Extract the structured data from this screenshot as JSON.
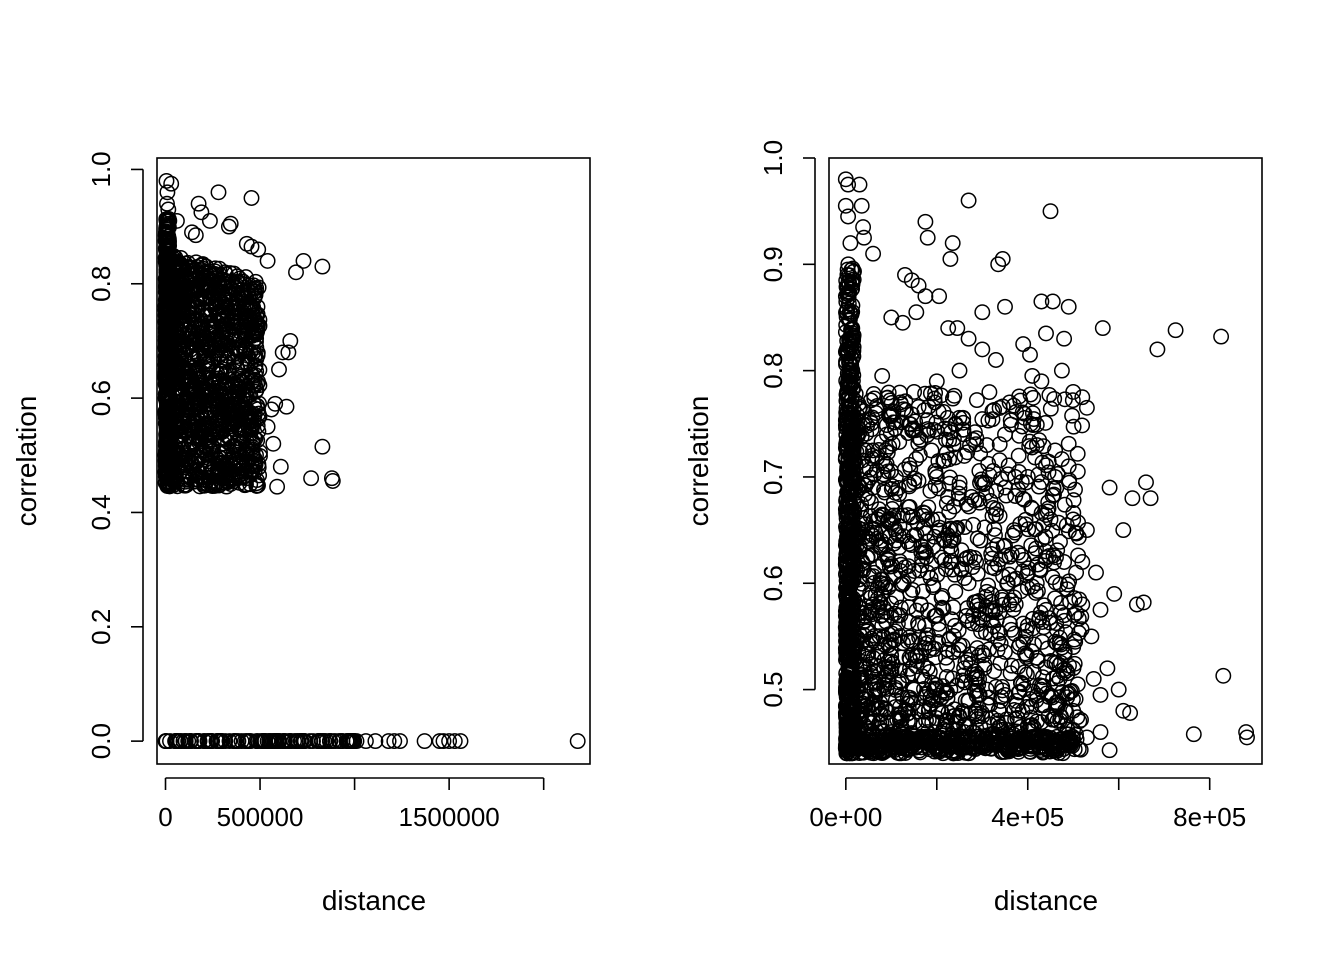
{
  "chart_data": [
    {
      "type": "scatter",
      "title": "",
      "xlabel": "distance",
      "ylabel": "correlation",
      "xlim": [
        -45000,
        2245000
      ],
      "ylim": [
        -0.04,
        1.02
      ],
      "xticks": [
        0,
        500000,
        1000000,
        1500000,
        2000000
      ],
      "xtick_labels": [
        "0",
        "500000",
        "",
        "1500000",
        ""
      ],
      "yticks": [
        0.0,
        0.2,
        0.4,
        0.6,
        0.8,
        1.0
      ],
      "ytick_labels": [
        "0.0",
        "0.2",
        "0.4",
        "0.6",
        "0.8",
        "1.0"
      ],
      "grid": false,
      "legend": "none",
      "marker": "open-circle",
      "points": [
        [
          5000,
          0.98
        ],
        [
          30000,
          0.975
        ],
        [
          10000,
          0.96
        ],
        [
          8000,
          0.94
        ],
        [
          15000,
          0.93
        ],
        [
          20000,
          0.91
        ],
        [
          5000,
          0.9
        ],
        [
          280000,
          0.96
        ],
        [
          455000,
          0.95
        ],
        [
          175000,
          0.94
        ],
        [
          190000,
          0.925
        ],
        [
          235000,
          0.91
        ],
        [
          345000,
          0.905
        ],
        [
          335000,
          0.9
        ],
        [
          60000,
          0.91
        ],
        [
          140000,
          0.89
        ],
        [
          160000,
          0.885
        ],
        [
          430000,
          0.87
        ],
        [
          455000,
          0.865
        ],
        [
          490000,
          0.86
        ],
        [
          540000,
          0.84
        ],
        [
          730000,
          0.84
        ],
        [
          830000,
          0.83
        ],
        [
          690000,
          0.82
        ],
        [
          650000,
          0.68
        ],
        [
          620000,
          0.68
        ],
        [
          660000,
          0.7
        ],
        [
          600000,
          0.65
        ],
        [
          580000,
          0.59
        ],
        [
          640000,
          0.585
        ],
        [
          560000,
          0.58
        ],
        [
          540000,
          0.55
        ],
        [
          570000,
          0.52
        ],
        [
          830000,
          0.515
        ],
        [
          610000,
          0.48
        ],
        [
          770000,
          0.46
        ],
        [
          880000,
          0.46
        ],
        [
          885000,
          0.455
        ],
        [
          590000,
          0.445
        ],
        [
          0,
          0.0
        ],
        [
          60000,
          0.0
        ],
        [
          120000,
          0.0
        ],
        [
          180000,
          0.0
        ],
        [
          240000,
          0.0
        ],
        [
          300000,
          0.0
        ],
        [
          360000,
          0.0
        ],
        [
          420000,
          0.0
        ],
        [
          480000,
          0.0
        ],
        [
          540000,
          0.0
        ],
        [
          600000,
          0.0
        ],
        [
          660000,
          0.0
        ],
        [
          720000,
          0.0
        ],
        [
          780000,
          0.0
        ],
        [
          840000,
          0.0
        ],
        [
          900000,
          0.0
        ],
        [
          960000,
          0.0
        ],
        [
          1010000,
          0.0
        ],
        [
          1060000,
          0.0
        ],
        [
          1110000,
          0.0
        ],
        [
          1180000,
          0.0
        ],
        [
          1210000,
          0.0
        ],
        [
          1240000,
          0.0
        ],
        [
          1370000,
          0.0
        ],
        [
          1450000,
          0.0
        ],
        [
          1470000,
          0.0
        ],
        [
          1500000,
          0.0
        ],
        [
          1530000,
          0.0
        ],
        [
          1560000,
          0.0
        ],
        [
          2180000,
          0.0
        ]
      ]
    },
    {
      "type": "scatter",
      "title": "",
      "xlabel": "distance",
      "ylabel": "correlation",
      "xlim": [
        -37000,
        915000
      ],
      "ylim": [
        0.43,
        1.0
      ],
      "xticks": [
        0,
        200000,
        400000,
        600000,
        800000
      ],
      "xtick_labels": [
        "0e+00",
        "",
        "4e+05",
        "",
        "8e+05"
      ],
      "yticks": [
        0.5,
        0.6,
        0.7,
        0.8,
        0.9,
        1.0
      ],
      "ytick_labels": [
        "0.5",
        "0.6",
        "0.7",
        "0.8",
        "0.9",
        "1.0"
      ],
      "grid": false,
      "legend": "none",
      "marker": "open-circle",
      "points": [
        [
          0,
          0.98
        ],
        [
          5000,
          0.975
        ],
        [
          30000,
          0.975
        ],
        [
          0,
          0.955
        ],
        [
          5000,
          0.945
        ],
        [
          35000,
          0.955
        ],
        [
          38000,
          0.935
        ],
        [
          40000,
          0.925
        ],
        [
          10000,
          0.92
        ],
        [
          60000,
          0.91
        ],
        [
          270000,
          0.96
        ],
        [
          450000,
          0.95
        ],
        [
          175000,
          0.94
        ],
        [
          180000,
          0.925
        ],
        [
          235000,
          0.92
        ],
        [
          230000,
          0.905
        ],
        [
          345000,
          0.905
        ],
        [
          335000,
          0.9
        ],
        [
          130000,
          0.89
        ],
        [
          145000,
          0.885
        ],
        [
          160000,
          0.88
        ],
        [
          175000,
          0.87
        ],
        [
          205000,
          0.87
        ],
        [
          430000,
          0.865
        ],
        [
          455000,
          0.865
        ],
        [
          490000,
          0.86
        ],
        [
          350000,
          0.86
        ],
        [
          155000,
          0.855
        ],
        [
          300000,
          0.855
        ],
        [
          100000,
          0.85
        ],
        [
          125000,
          0.845
        ],
        [
          225000,
          0.84
        ],
        [
          245000,
          0.84
        ],
        [
          565000,
          0.84
        ],
        [
          725000,
          0.838
        ],
        [
          825000,
          0.832
        ],
        [
          685000,
          0.82
        ],
        [
          440000,
          0.835
        ],
        [
          480000,
          0.83
        ],
        [
          270000,
          0.83
        ],
        [
          300000,
          0.82
        ],
        [
          390000,
          0.825
        ],
        [
          405000,
          0.815
        ],
        [
          250000,
          0.8
        ],
        [
          330000,
          0.81
        ],
        [
          520000,
          0.775
        ],
        [
          530000,
          0.765
        ],
        [
          500000,
          0.78
        ],
        [
          475000,
          0.8
        ],
        [
          430000,
          0.79
        ],
        [
          410000,
          0.795
        ],
        [
          360000,
          0.77
        ],
        [
          200000,
          0.79
        ],
        [
          150000,
          0.78
        ],
        [
          120000,
          0.77
        ],
        [
          80000,
          0.795
        ],
        [
          100000,
          0.76
        ],
        [
          90000,
          0.74
        ],
        [
          140000,
          0.75
        ],
        [
          180000,
          0.745
        ],
        [
          220000,
          0.735
        ],
        [
          260000,
          0.74
        ],
        [
          310000,
          0.73
        ],
        [
          350000,
          0.74
        ],
        [
          380000,
          0.72
        ],
        [
          420000,
          0.73
        ],
        [
          460000,
          0.725
        ],
        [
          490000,
          0.71
        ],
        [
          510000,
          0.705
        ],
        [
          460000,
          0.7
        ],
        [
          400000,
          0.7
        ],
        [
          350000,
          0.69
        ],
        [
          300000,
          0.695
        ],
        [
          250000,
          0.69
        ],
        [
          200000,
          0.7
        ],
        [
          150000,
          0.695
        ],
        [
          110000,
          0.7
        ],
        [
          60000,
          0.69
        ],
        [
          580000,
          0.69
        ],
        [
          660000,
          0.695
        ],
        [
          670000,
          0.68
        ],
        [
          630000,
          0.68
        ],
        [
          610000,
          0.65
        ],
        [
          530000,
          0.65
        ],
        [
          500000,
          0.66
        ],
        [
          450000,
          0.66
        ],
        [
          410000,
          0.67
        ],
        [
          370000,
          0.65
        ],
        [
          330000,
          0.665
        ],
        [
          280000,
          0.655
        ],
        [
          240000,
          0.65
        ],
        [
          190000,
          0.66
        ],
        [
          150000,
          0.645
        ],
        [
          100000,
          0.655
        ],
        [
          70000,
          0.66
        ],
        [
          520000,
          0.62
        ],
        [
          480000,
          0.62
        ],
        [
          440000,
          0.63
        ],
        [
          400000,
          0.61
        ],
        [
          360000,
          0.625
        ],
        [
          320000,
          0.615
        ],
        [
          270000,
          0.6
        ],
        [
          230000,
          0.62
        ],
        [
          180000,
          0.61
        ],
        [
          130000,
          0.615
        ],
        [
          80000,
          0.6
        ],
        [
          550000,
          0.61
        ],
        [
          590000,
          0.59
        ],
        [
          640000,
          0.58
        ],
        [
          655000,
          0.582
        ],
        [
          560000,
          0.575
        ],
        [
          520000,
          0.58
        ],
        [
          480000,
          0.57
        ],
        [
          440000,
          0.575
        ],
        [
          400000,
          0.56
        ],
        [
          360000,
          0.58
        ],
        [
          320000,
          0.565
        ],
        [
          280000,
          0.57
        ],
        [
          240000,
          0.56
        ],
        [
          200000,
          0.57
        ],
        [
          160000,
          0.56
        ],
        [
          120000,
          0.57
        ],
        [
          80000,
          0.56
        ],
        [
          60000,
          0.58
        ],
        [
          540000,
          0.55
        ],
        [
          500000,
          0.54
        ],
        [
          460000,
          0.545
        ],
        [
          420000,
          0.53
        ],
        [
          380000,
          0.54
        ],
        [
          340000,
          0.525
        ],
        [
          300000,
          0.535
        ],
        [
          260000,
          0.52
        ],
        [
          220000,
          0.53
        ],
        [
          180000,
          0.52
        ],
        [
          140000,
          0.53
        ],
        [
          100000,
          0.52
        ],
        [
          70000,
          0.535
        ],
        [
          575000,
          0.52
        ],
        [
          545000,
          0.51
        ],
        [
          510000,
          0.505
        ],
        [
          470000,
          0.51
        ],
        [
          430000,
          0.5
        ],
        [
          390000,
          0.505
        ],
        [
          350000,
          0.495
        ],
        [
          310000,
          0.5
        ],
        [
          270000,
          0.49
        ],
        [
          230000,
          0.5
        ],
        [
          190000,
          0.49
        ],
        [
          150000,
          0.5
        ],
        [
          110000,
          0.49
        ],
        [
          75000,
          0.5
        ],
        [
          560000,
          0.495
        ],
        [
          600000,
          0.5
        ],
        [
          610000,
          0.48
        ],
        [
          625000,
          0.478
        ],
        [
          830000,
          0.513
        ],
        [
          765000,
          0.458
        ],
        [
          880000,
          0.46
        ],
        [
          882000,
          0.455
        ],
        [
          500000,
          0.48
        ],
        [
          460000,
          0.475
        ],
        [
          420000,
          0.47
        ],
        [
          380000,
          0.48
        ],
        [
          340000,
          0.465
        ],
        [
          300000,
          0.475
        ],
        [
          260000,
          0.46
        ],
        [
          220000,
          0.47
        ],
        [
          180000,
          0.46
        ],
        [
          140000,
          0.47
        ],
        [
          100000,
          0.46
        ],
        [
          60000,
          0.47
        ],
        [
          560000,
          0.46
        ],
        [
          530000,
          0.455
        ],
        [
          580000,
          0.443
        ],
        [
          480000,
          0.45
        ],
        [
          440000,
          0.445
        ],
        [
          400000,
          0.45
        ],
        [
          360000,
          0.445
        ],
        [
          320000,
          0.448
        ],
        [
          280000,
          0.445
        ],
        [
          240000,
          0.448
        ],
        [
          200000,
          0.445
        ],
        [
          160000,
          0.448
        ],
        [
          120000,
          0.445
        ],
        [
          80000,
          0.448
        ],
        [
          40000,
          0.445
        ],
        [
          0,
          0.445
        ]
      ]
    }
  ]
}
